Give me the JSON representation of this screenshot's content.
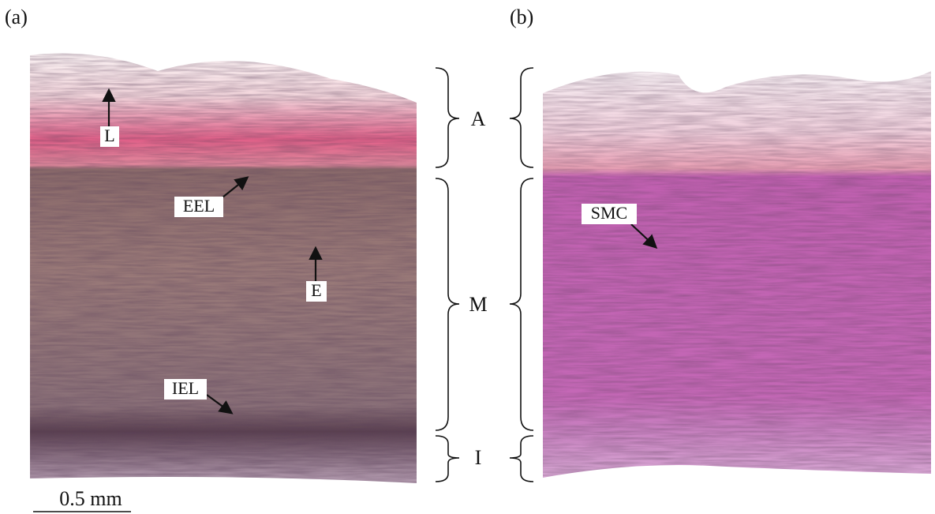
{
  "panels": [
    {
      "label": "(a)",
      "annotations": [
        "L",
        "EEL",
        "E",
        "IEL"
      ],
      "scale_bar": "0.5 mm"
    },
    {
      "label": "(b)",
      "annotations": [
        "SMC"
      ]
    }
  ],
  "layers": [
    "A",
    "M",
    "I"
  ]
}
